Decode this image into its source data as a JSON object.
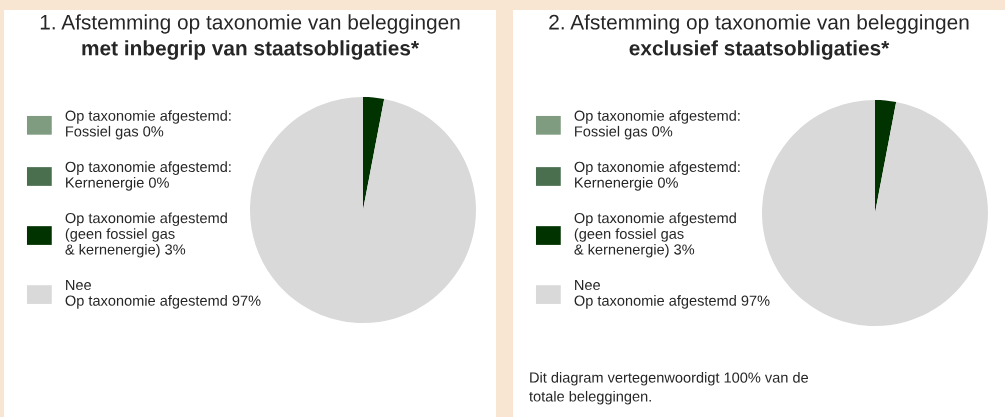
{
  "chart_data": [
    {
      "type": "pie",
      "title": "1. Afstemming op taxonomie van beleggingen",
      "subtitle": "met inbegrip van staatsobligaties*",
      "categories": [
        "Op taxonomie afgestemd:\nFossiel gas 0%",
        "Op taxonomie afgestemd:\nKernenergie 0%",
        "Op taxonomie afgestemd\n(geen fossiel gas\n& kernenergie) 3%",
        "Nee\nOp taxonomie afgestemd 97%"
      ],
      "values": [
        0,
        0,
        3,
        97
      ],
      "colors": [
        "#7f9c80",
        "#4a6f4f",
        "#003300",
        "#d9d9d9"
      ],
      "legend": "left"
    },
    {
      "type": "pie",
      "title": "2. Afstemming op taxonomie van beleggingen",
      "subtitle": "exclusief staatsobligaties*",
      "categories": [
        "Op taxonomie afgestemd:\nFossiel gas 0%",
        "Op taxonomie afgestemd:\nKernenergie 0%",
        "Op taxonomie afgestemd\n(geen fossiel gas\n& kernenergie) 3%",
        "Nee\nOp taxonomie afgestemd 97%"
      ],
      "values": [
        0,
        0,
        3,
        97
      ],
      "colors": [
        "#7f9c80",
        "#4a6f4f",
        "#003300",
        "#d9d9d9"
      ],
      "legend": "left",
      "annotations": [
        "Dit diagram vertegenwoordigt 100% van de\ntotale beleggingen."
      ]
    }
  ]
}
